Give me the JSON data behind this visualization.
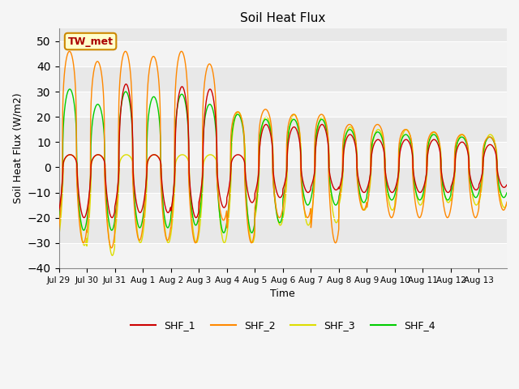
{
  "title": "Soil Heat Flux",
  "xlabel": "Time",
  "ylabel": "Soil Heat Flux (W/m2)",
  "ylim": [
    -40,
    55
  ],
  "yticks": [
    -40,
    -30,
    -20,
    -10,
    0,
    10,
    20,
    30,
    40,
    50
  ],
  "annotation": "TW_met",
  "series_colors": {
    "SHF_1": "#cc0000",
    "SHF_2": "#ff8800",
    "SHF_3": "#dddd00",
    "SHF_4": "#00cc00"
  },
  "legend_labels": [
    "SHF_1",
    "SHF_2",
    "SHF_3",
    "SHF_4"
  ],
  "xtick_labels": [
    "Jul 29",
    "Jul 30",
    "Jul 31",
    "Aug 1",
    "Aug 2",
    "Aug 3",
    "Aug 4",
    "Aug 5",
    "Aug 6",
    "Aug 7",
    "Aug 8",
    "Aug 9",
    "Aug 10",
    "Aug 11",
    "Aug 12",
    "Aug 13"
  ],
  "plot_bg_color": "#e8e8e8",
  "annotation_bg": "#ffffcc",
  "annotation_border": "#cc8800",
  "fig_bg": "#f5f5f5",
  "shf2_pos": [
    46,
    42,
    46,
    44,
    46,
    41,
    22,
    23,
    21,
    21,
    17,
    17,
    15,
    14,
    13,
    12
  ],
  "shf2_neg": [
    -30,
    -32,
    -29,
    -29,
    -30,
    -21,
    -30,
    -20,
    -20,
    -30,
    -17,
    -20,
    -20,
    -20,
    -20,
    -17
  ],
  "shf3_pos": [
    5,
    5,
    5,
    5,
    5,
    5,
    22,
    20,
    21,
    20,
    16,
    15,
    15,
    14,
    13,
    13
  ],
  "shf3_neg": [
    -31,
    -35,
    -30,
    -30,
    -30,
    -30,
    -30,
    -23,
    -23,
    -22,
    -17,
    -17,
    -15,
    -14,
    -15,
    -16
  ],
  "shf4_pos": [
    31,
    25,
    30,
    28,
    29,
    25,
    21,
    19,
    19,
    19,
    15,
    14,
    13,
    13,
    12,
    12
  ],
  "shf4_neg": [
    -25,
    -25,
    -24,
    -24,
    -23,
    -26,
    -26,
    -22,
    -15,
    -15,
    -14,
    -13,
    -13,
    -13,
    -12,
    -12
  ],
  "shf1_pos": [
    5,
    5,
    33,
    5,
    32,
    31,
    5,
    17,
    16,
    17,
    13,
    11,
    11,
    11,
    10,
    9
  ],
  "shf1_neg": [
    -20,
    -20,
    -18,
    -18,
    -20,
    -16,
    -14,
    -12,
    -10,
    -9,
    -10,
    -10,
    -10,
    -10,
    -9,
    -8
  ]
}
